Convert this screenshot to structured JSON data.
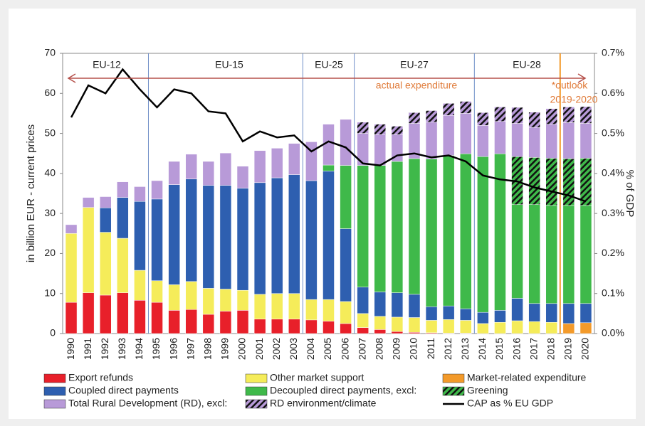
{
  "chart_data": {
    "type": "bar",
    "y_label": "in billion EUR - current prices",
    "y2_label": "% of GDP",
    "annotations": [
      "EU-12",
      "EU-15",
      "EU-25",
      "EU-27",
      "EU-28",
      "actual expenditure",
      "*outlook",
      "2019-2020"
    ],
    "categories": [
      "1990",
      "1991",
      "1992",
      "1993",
      "1994",
      "1995",
      "1996",
      "1997",
      "1998",
      "1999",
      "2000",
      "2001",
      "2002",
      "2003",
      "2004",
      "2005",
      "2006",
      "2007",
      "2008",
      "2009",
      "2010",
      "2011",
      "2012",
      "2013",
      "2014",
      "2015",
      "2016",
      "2017",
      "2018",
      "2019",
      "2020"
    ],
    "stacked": true,
    "ylim": [
      0,
      70
    ],
    "yticks": [
      0,
      10,
      20,
      30,
      40,
      50,
      60,
      70
    ],
    "y2lim": [
      0,
      0.7
    ],
    "y2ticks": [
      {
        "value": 0,
        "label": "0.0%"
      },
      {
        "value": 0.1,
        "label": "0.1%"
      },
      {
        "value": 0.2,
        "label": "0.2%"
      },
      {
        "value": 0.3,
        "label": "0.3%"
      },
      {
        "value": 0.4,
        "label": "0.4%"
      },
      {
        "value": 0.5,
        "label": "0.5%"
      },
      {
        "value": 0.6,
        "label": "0.6%"
      },
      {
        "value": 0.7,
        "label": "0.7%"
      }
    ],
    "series": [
      {
        "name": "Export refunds",
        "color": "#e8202a",
        "values": [
          7.8,
          10.2,
          9.6,
          10.2,
          8.3,
          7.8,
          5.8,
          6,
          4.8,
          5.6,
          5.8,
          3.6,
          3.6,
          3.6,
          3.4,
          3.1,
          2.5,
          1.5,
          1,
          0.5,
          0.3,
          0.2,
          0.1,
          0.1,
          0,
          0,
          0,
          0,
          0,
          0,
          0
        ]
      },
      {
        "name": "Other market support",
        "color": "#f5ec5a",
        "values": [
          17.2,
          21.3,
          15.7,
          13.6,
          7.5,
          5.4,
          6.4,
          7,
          6.5,
          5.5,
          5,
          6.2,
          6.4,
          6.4,
          5.1,
          5.4,
          5.5,
          3.5,
          3.3,
          3.6,
          3.7,
          3.1,
          3.4,
          3.2,
          2.5,
          2.8,
          3.2,
          3,
          2.8,
          0,
          0
        ]
      },
      {
        "name": "Market-related expenditure",
        "color": "#f39a2a",
        "values": [
          0,
          0,
          0,
          0,
          0,
          0,
          0,
          0,
          0,
          0,
          0,
          0,
          0,
          0,
          0,
          0,
          0,
          0,
          0,
          0,
          0,
          0,
          0,
          0,
          0,
          0,
          0,
          0,
          0,
          2.5,
          2.7
        ]
      },
      {
        "name": "Coupled direct payments",
        "color": "#2e5fb0",
        "values": [
          0,
          0,
          6.1,
          10.2,
          17.2,
          20.4,
          25,
          25.6,
          25.7,
          25.9,
          25.5,
          27.9,
          28.9,
          29.7,
          29.7,
          32.1,
          18.2,
          6.6,
          6.1,
          6.1,
          5.8,
          3.4,
          3.4,
          2.9,
          2.8,
          3,
          5.6,
          4.5,
          4.7,
          5,
          4.8
        ]
      },
      {
        "name": "Decoupled direct payments, excl:",
        "color": "#3fb94a",
        "values": [
          0,
          0,
          0,
          0,
          0,
          0,
          0,
          0,
          0,
          0,
          0,
          0,
          0,
          0,
          0,
          1.5,
          15.8,
          30.4,
          31.6,
          32.8,
          33.9,
          36.9,
          37.6,
          38.7,
          38.9,
          39.1,
          23.4,
          24.7,
          24.5,
          24.5,
          24.5
        ]
      },
      {
        "name": "Greening",
        "color": "#3fb94a",
        "hatch": true,
        "values": [
          0,
          0,
          0,
          0,
          0,
          0,
          0,
          0,
          0,
          0,
          0,
          0,
          0,
          0,
          0,
          0,
          0,
          0,
          0,
          0,
          0,
          0,
          0,
          0,
          0,
          0,
          12,
          11.8,
          11.8,
          11.7,
          11.8
        ]
      },
      {
        "name": "Total Rural Development (RD), excl:",
        "color": "#b89ad8",
        "values": [
          2.2,
          2.5,
          2.8,
          3.9,
          3.7,
          4.6,
          5.8,
          6.2,
          6,
          8.1,
          5.5,
          8,
          7.4,
          7.8,
          9.7,
          10.2,
          11.5,
          8,
          7.7,
          6.7,
          8.8,
          9.2,
          10,
          10.1,
          7.8,
          8.1,
          8.3,
          7.5,
          8.5,
          9,
          8.7
        ]
      },
      {
        "name": "RD environment/climate",
        "color": "#b89ad8",
        "hatch": true,
        "values": [
          0,
          0,
          0,
          0,
          0,
          0,
          0,
          0,
          0,
          0,
          0,
          0,
          0,
          0,
          0,
          0,
          0,
          2.8,
          2.6,
          2.1,
          2.7,
          2.9,
          3,
          3,
          3.2,
          3.6,
          4,
          3.8,
          3.9,
          3.9,
          4.2
        ]
      },
      {
        "name": "CAP as % EU GDP",
        "color": "#000000",
        "type": "line",
        "axis": "y2",
        "values": [
          0.54,
          0.62,
          0.6,
          0.66,
          0.61,
          0.565,
          0.61,
          0.6,
          0.555,
          0.55,
          0.48,
          0.505,
          0.49,
          0.495,
          0.455,
          0.48,
          0.465,
          0.425,
          0.42,
          0.445,
          0.45,
          0.44,
          0.445,
          0.43,
          0.395,
          0.385,
          0.38,
          0.365,
          0.355,
          0.345,
          0.33
        ]
      }
    ]
  }
}
